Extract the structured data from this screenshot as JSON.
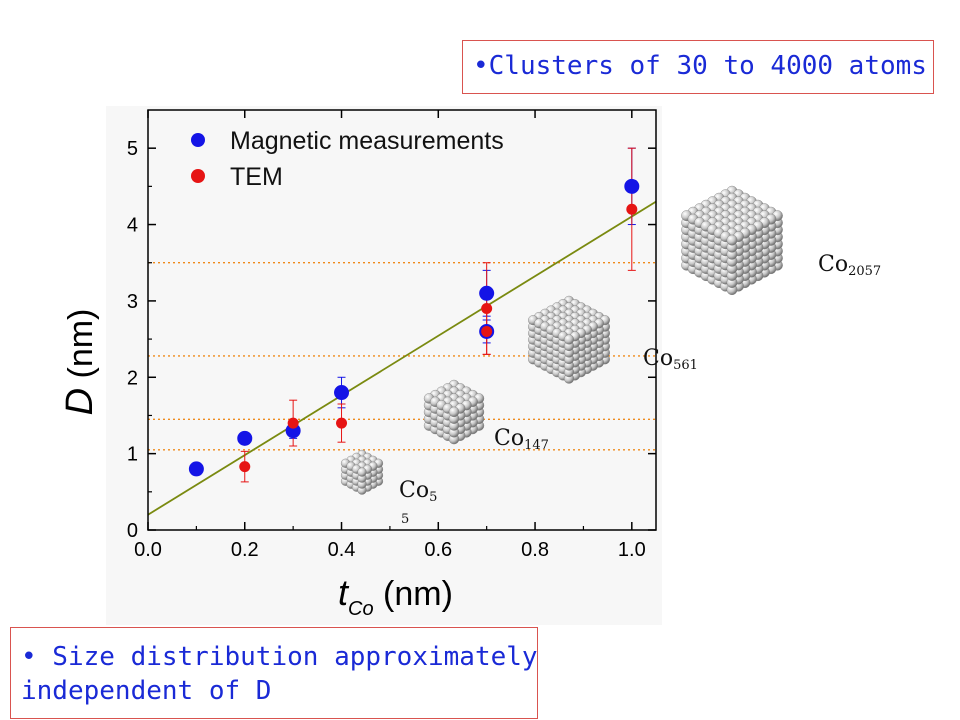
{
  "notes": {
    "top": "•Clusters of 30 to 4000 atoms",
    "bottom_line1": "• Size distribution approximately",
    "bottom_line2": "independent of D"
  },
  "chart_data": {
    "type": "scatter",
    "xlabel_main": "t",
    "xlabel_sub": "Co",
    "xlabel_unit": " (nm)",
    "ylabel_main": "D",
    "ylabel_unit": " (nm)",
    "xlim": [
      0.0,
      1.05
    ],
    "ylim": [
      0,
      5.5
    ],
    "xticks": [
      0.0,
      0.2,
      0.4,
      0.6,
      0.8,
      1.0
    ],
    "xtick_labels": [
      "0.0",
      "0.2",
      "0.4",
      "0.6",
      "0.8",
      "1.0"
    ],
    "yticks": [
      0,
      1,
      2,
      3,
      4,
      5
    ],
    "ytick_labels": [
      "0",
      "1",
      "2",
      "3",
      "4",
      "5"
    ],
    "grid": false,
    "legend_position": "top-left",
    "series": [
      {
        "name": "Magnetic measurements",
        "color": "#1414e6",
        "points": [
          {
            "x": 0.1,
            "y": 0.8,
            "err": 0
          },
          {
            "x": 0.2,
            "y": 1.2,
            "err": 0.05
          },
          {
            "x": 0.3,
            "y": 1.3,
            "err": 0.1
          },
          {
            "x": 0.4,
            "y": 1.8,
            "err": 0.2
          },
          {
            "x": 0.7,
            "y": 2.6,
            "err": 0.15
          },
          {
            "x": 0.7,
            "y": 3.1,
            "err": 0.3
          },
          {
            "x": 1.0,
            "y": 4.5,
            "err": 0.5
          }
        ]
      },
      {
        "name": "TEM",
        "color": "#e61414",
        "points": [
          {
            "x": 0.2,
            "y": 0.83,
            "err": 0.2
          },
          {
            "x": 0.3,
            "y": 1.4,
            "err": 0.3
          },
          {
            "x": 0.4,
            "y": 1.4,
            "err": 0.25
          },
          {
            "x": 0.7,
            "y": 2.6,
            "err": 0.3
          },
          {
            "x": 0.7,
            "y": 2.9,
            "err": 0.6
          },
          {
            "x": 1.0,
            "y": 4.2,
            "err": 0.8
          }
        ]
      }
    ],
    "fit_line": {
      "color": "#7a8a10",
      "x": [
        0.0,
        1.05
      ],
      "y": [
        0.2,
        4.3
      ]
    },
    "reference_lines": {
      "color": "#f08a1a",
      "y": [
        1.05,
        1.45,
        2.28,
        3.5
      ]
    },
    "cluster_labels": [
      {
        "base": "Co",
        "sub": "2057"
      },
      {
        "base": "Co",
        "sub": "561"
      },
      {
        "base": "Co",
        "sub": "147"
      },
      {
        "base": "Co",
        "sub": "5",
        "sub2": "5"
      }
    ]
  }
}
